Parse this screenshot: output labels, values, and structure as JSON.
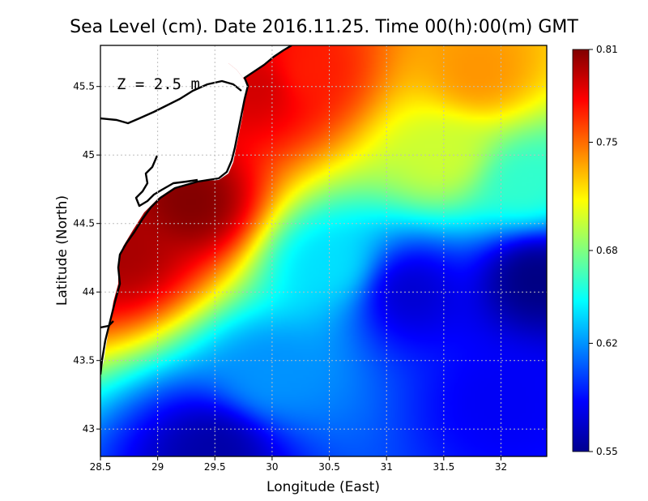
{
  "chart_data": {
    "type": "heatmap",
    "title": "Sea Level (cm). Date 2016.11.25. Time 00(h):00(m) GMT",
    "annotation": "Z = 2.5 m",
    "xlabel": "Longitude (East)",
    "ylabel": "Latitude (North)",
    "xlim": [
      28.5,
      32.4
    ],
    "ylim": [
      42.8,
      45.8
    ],
    "x_ticks": [
      "28.5",
      "29",
      "29.5",
      "30",
      "30.5",
      "31",
      "31.5",
      "32"
    ],
    "y_ticks": [
      "43",
      "43.5",
      "44",
      "44.5",
      "45",
      "45.5"
    ],
    "x_tick_values": [
      28.5,
      29,
      29.5,
      30,
      30.5,
      31,
      31.5,
      32
    ],
    "y_tick_values": [
      43,
      43.5,
      44,
      44.5,
      45,
      45.5
    ],
    "grid": true,
    "colorbar": {
      "min": 0.55,
      "max": 0.81,
      "tick_labels": [
        "0.81",
        "0.75",
        "0.68",
        "0.62",
        "0.55"
      ],
      "tick_values": [
        0.81,
        0.75,
        0.68,
        0.62,
        0.55
      ],
      "placement": "right",
      "colormap": "jet"
    },
    "field_samples": [
      {
        "lon": 28.7,
        "lat": 44.3,
        "value": 0.8
      },
      {
        "lon": 29.3,
        "lat": 44.65,
        "value": 0.81
      },
      {
        "lon": 29.9,
        "lat": 45.5,
        "value": 0.79
      },
      {
        "lon": 30.3,
        "lat": 45.6,
        "value": 0.77
      },
      {
        "lon": 31.8,
        "lat": 45.6,
        "value": 0.74
      },
      {
        "lon": 31.5,
        "lat": 45.0,
        "value": 0.7
      },
      {
        "lon": 32.2,
        "lat": 44.8,
        "value": 0.66
      },
      {
        "lon": 30.5,
        "lat": 44.2,
        "value": 0.64
      },
      {
        "lon": 31.2,
        "lat": 44.0,
        "value": 0.57
      },
      {
        "lon": 32.3,
        "lat": 44.1,
        "value": 0.55
      },
      {
        "lon": 29.5,
        "lat": 42.85,
        "value": 0.56
      },
      {
        "lon": 30.0,
        "lat": 43.4,
        "value": 0.62
      },
      {
        "lon": 32.0,
        "lat": 43.2,
        "value": 0.58
      }
    ]
  }
}
